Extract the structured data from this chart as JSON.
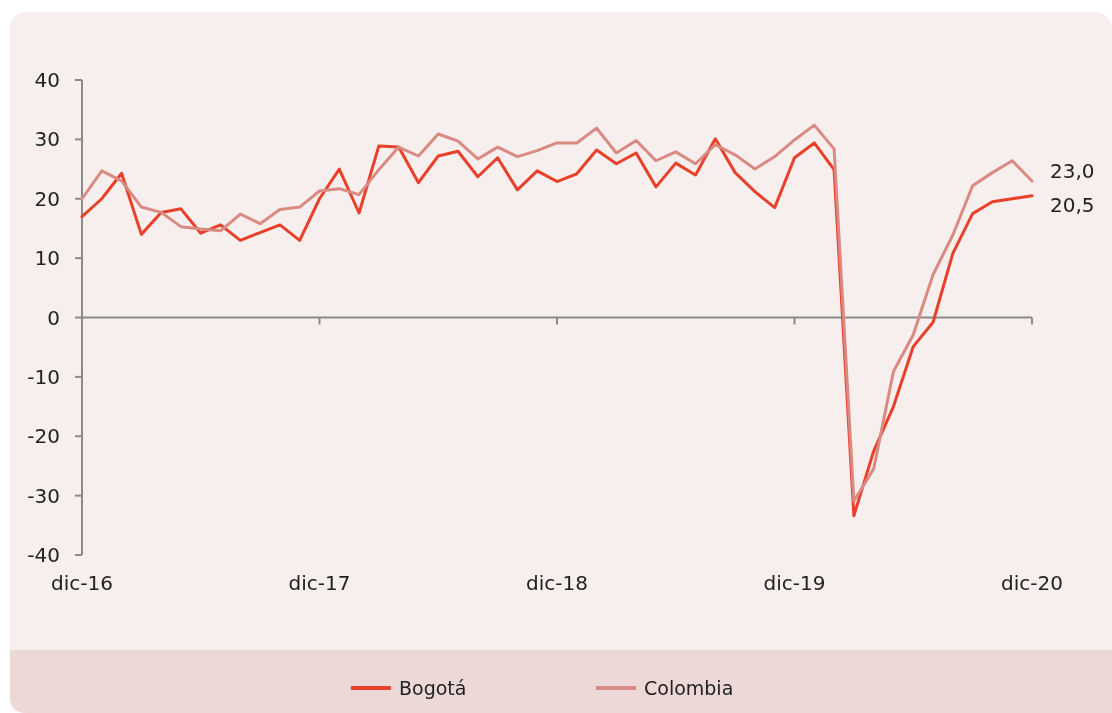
{
  "chart_data": {
    "type": "line",
    "categories": [
      "dic-16",
      null,
      null,
      null,
      null,
      null,
      null,
      null,
      null,
      null,
      null,
      null,
      "dic-17",
      null,
      null,
      null,
      null,
      null,
      null,
      null,
      null,
      null,
      null,
      null,
      "dic-18",
      null,
      null,
      null,
      null,
      null,
      null,
      null,
      null,
      null,
      null,
      null,
      "dic-19",
      null,
      null,
      null,
      null,
      null,
      null,
      null,
      null,
      null,
      null,
      null,
      "dic-20"
    ],
    "series": [
      {
        "name": "Bogotá",
        "color": "#e8402a",
        "values": [
          17,
          20,
          24.3,
          14,
          17.7,
          18.3,
          14.2,
          15.6,
          13,
          14.3,
          15.6,
          13,
          20,
          25,
          17.6,
          28.9,
          28.7,
          22.7,
          27.2,
          28,
          23.7,
          26.9,
          21.5,
          24.7,
          22.9,
          24.2,
          28.2,
          25.9,
          27.7,
          22,
          26,
          24,
          30.1,
          24.4,
          21.2,
          18.5,
          26.9,
          29.4,
          24.9,
          -33.4,
          -22.5,
          -15,
          -4.9,
          -0.8,
          10.8,
          17.5,
          19.5,
          20,
          20.5
        ],
        "value_labels": [
          null,
          null,
          null,
          null,
          null,
          null,
          null,
          null,
          null,
          null,
          null,
          null,
          null,
          null,
          null,
          null,
          null,
          null,
          null,
          null,
          null,
          null,
          null,
          null,
          null,
          null,
          null,
          null,
          null,
          null,
          null,
          null,
          null,
          null,
          null,
          null,
          null,
          null,
          null,
          null,
          null,
          null,
          null,
          null,
          null,
          null,
          null,
          null,
          "20,5"
        ]
      },
      {
        "name": "Colombia",
        "color": "#d98a82",
        "values": [
          20,
          24.7,
          23,
          18.6,
          17.7,
          15.3,
          14.9,
          14.6,
          17.4,
          15.8,
          18.2,
          18.6,
          21.3,
          21.7,
          20.7,
          24.9,
          28.7,
          27.2,
          30.9,
          29.7,
          26.7,
          28.7,
          27.1,
          28.1,
          29.4,
          29.4,
          31.9,
          27.7,
          29.8,
          26.4,
          27.9,
          25.9,
          29.1,
          27.4,
          25,
          27.1,
          29.9,
          32.4,
          28.4,
          -30.9,
          -25.5,
          -9.1,
          -2.9,
          7.2,
          13.9,
          22.2,
          24.4,
          26.4,
          23
        ],
        "value_labels": [
          null,
          null,
          null,
          null,
          null,
          null,
          null,
          null,
          null,
          null,
          null,
          null,
          null,
          null,
          null,
          null,
          null,
          null,
          null,
          null,
          null,
          null,
          null,
          null,
          null,
          null,
          null,
          null,
          null,
          null,
          null,
          null,
          null,
          null,
          null,
          null,
          null,
          null,
          null,
          null,
          null,
          null,
          null,
          null,
          null,
          null,
          null,
          null,
          "23,0"
        ]
      }
    ],
    "ylim": [
      -40,
      40
    ],
    "yticks": [
      -40,
      -30,
      -20,
      -10,
      0,
      10,
      20,
      30,
      40
    ],
    "legend": "bottom"
  }
}
